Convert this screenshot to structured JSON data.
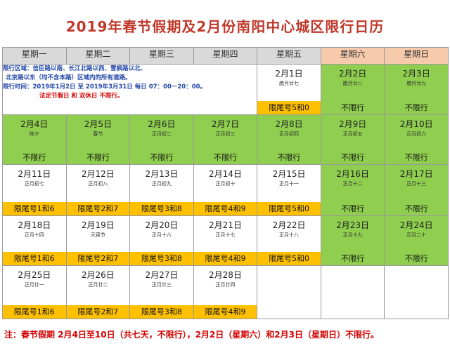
{
  "title": "2019年春节假期及2月份南阳中心城区限行日历",
  "weekdays": [
    "星期一",
    "星期二",
    "星期三",
    "星期四",
    "星期五",
    "星期六",
    "星期日"
  ],
  "info": {
    "line1": "限行区域：信臣路以南、长江北路以西、雪枫路以北、",
    "line2": "北京路以东（均不含本路）区域内的所有道路。",
    "line3": "限行时间：2019年1月2日 至 2019年3月31日 每日 07：00－20：00。",
    "line4": "法定节假日 和 双休日 不限行。"
  },
  "days": {
    "d1": {
      "date": "2月1日",
      "lunar": "腊月廿七",
      "rule": "限尾号5和0"
    },
    "d2": {
      "date": "2月2日",
      "lunar": "腊月廿八",
      "rule": "不限行"
    },
    "d3": {
      "date": "2月3日",
      "lunar": "腊月廿九",
      "rule": "不限行"
    },
    "d4": {
      "date": "2月4日",
      "lunar": "除夕",
      "rule": "不限行"
    },
    "d5": {
      "date": "2月5日",
      "lunar": "春节",
      "rule": "不限行"
    },
    "d6": {
      "date": "2月6日",
      "lunar": "正月初二",
      "rule": "不限行"
    },
    "d7": {
      "date": "2月7日",
      "lunar": "正月初三",
      "rule": "不限行"
    },
    "d8": {
      "date": "2月8日",
      "lunar": "正月初四",
      "rule": "不限行"
    },
    "d9": {
      "date": "2月9日",
      "lunar": "正月初五",
      "rule": "不限行"
    },
    "d10": {
      "date": "2月10日",
      "lunar": "正月初六",
      "rule": "不限行"
    },
    "d11": {
      "date": "2月11日",
      "lunar": "正月初七",
      "rule": "限尾号1和6"
    },
    "d12": {
      "date": "2月12日",
      "lunar": "正月初八",
      "rule": "限尾号2和7"
    },
    "d13": {
      "date": "2月13日",
      "lunar": "正月初九",
      "rule": "限尾号3和8"
    },
    "d14": {
      "date": "2月14日",
      "lunar": "正月初十",
      "rule": "限尾号4和9"
    },
    "d15": {
      "date": "2月15日",
      "lunar": "正月十一",
      "rule": "限尾号5和0"
    },
    "d16": {
      "date": "2月16日",
      "lunar": "正月十二",
      "rule": "不限行"
    },
    "d17": {
      "date": "2月17日",
      "lunar": "正月十三",
      "rule": "不限行"
    },
    "d18": {
      "date": "2月18日",
      "lunar": "正月十四",
      "rule": "限尾号1和6"
    },
    "d19": {
      "date": "2月19日",
      "lunar": "元宵节",
      "rule": "限尾号2和7"
    },
    "d20": {
      "date": "2月20日",
      "lunar": "正月十六",
      "rule": "限尾号3和8"
    },
    "d21": {
      "date": "2月21日",
      "lunar": "正月十七",
      "rule": "限尾号4和9"
    },
    "d22": {
      "date": "2月22日",
      "lunar": "正月十八",
      "rule": "限尾号5和0"
    },
    "d23": {
      "date": "2月23日",
      "lunar": "正月十九",
      "rule": "不限行"
    },
    "d24": {
      "date": "2月24日",
      "lunar": "正月二十",
      "rule": "不限行"
    },
    "d25": {
      "date": "2月25日",
      "lunar": "正月廿一",
      "rule": "限尾号1和6"
    },
    "d26": {
      "date": "2月26日",
      "lunar": "正月廿二",
      "rule": "限尾号2和7"
    },
    "d27": {
      "date": "2月27日",
      "lunar": "正月廿三",
      "rule": "限尾号3和8"
    },
    "d28": {
      "date": "2月28日",
      "lunar": "正月廿四",
      "rule": "限尾号4和9"
    }
  },
  "note": "注：春节假期 2月4日至10日（共七天，不限行），2月2日（星期六）和2月3日（星期日）不限行。",
  "colors": {
    "title": "#c0392b",
    "green": "#8fce4f",
    "yellow": "#ffc000",
    "weekend_header": "#f7caac",
    "header": "#d9d9d9",
    "info_blue": "#2046a8",
    "red": "#d40000"
  }
}
